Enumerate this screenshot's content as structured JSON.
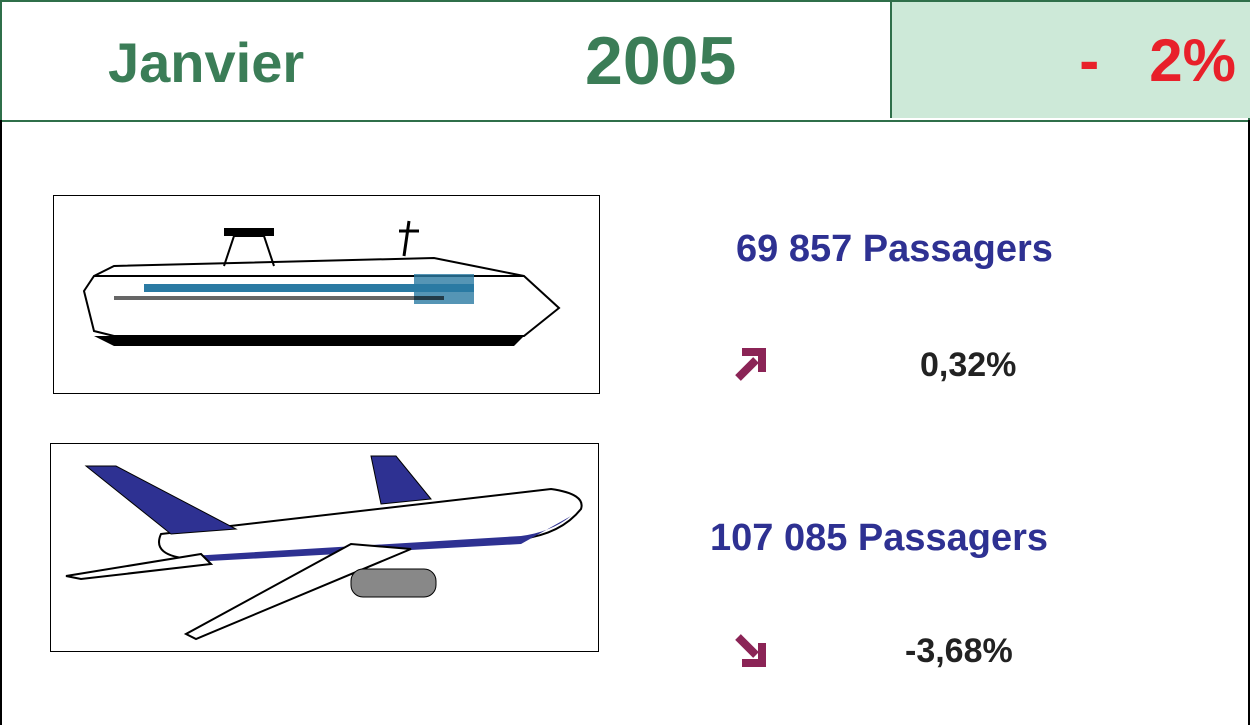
{
  "header": {
    "month": "Janvier",
    "year": "2005",
    "change": "-   2%"
  },
  "items": [
    {
      "passengers": "69 857 Passagers",
      "change": "0,32%"
    },
    {
      "passengers": "107 085 Passagers",
      "change": "-3,68%"
    }
  ]
}
